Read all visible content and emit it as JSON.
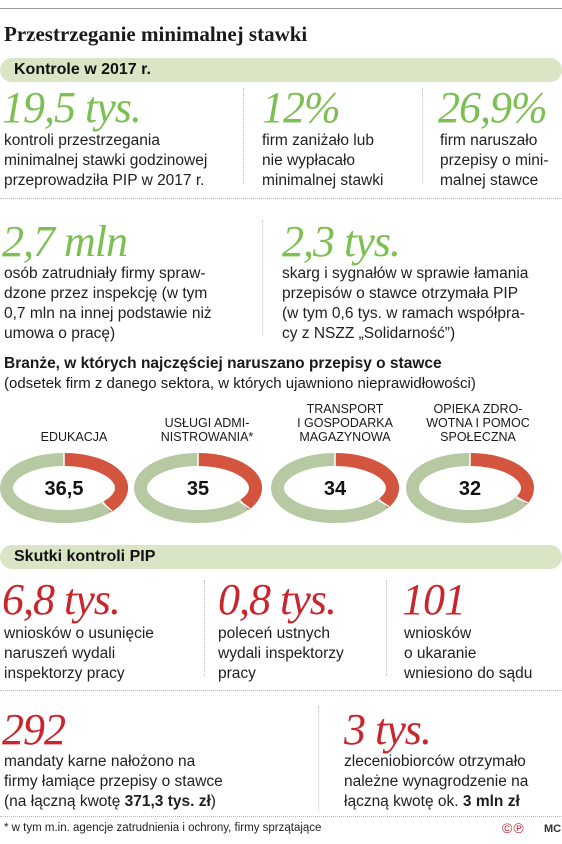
{
  "title": "Przestrzeganie minimalnej stawki",
  "band1": "Kontrole w 2017 r.",
  "stats_top": [
    {
      "value": "19,5 tys.",
      "text": "kontroli przestrzegania\nminimalnej stawki godzinowej\nprzeprowadziła PIP w 2017 r."
    },
    {
      "value": "12%",
      "text": "firm zaniżało lub\nnie wypłacało\nminimalnej stawki"
    },
    {
      "value": "26,9%",
      "text": "firm naruszało\nprzepisy o mini-\nmalnej stawce"
    }
  ],
  "stats_mid": [
    {
      "value": "2,7 mln",
      "text": "osób zatrudniały firmy spraw-\ndzone przez inspekcję (w tym\n0,7 mln na innej podstawie niż\numowa o pracę)"
    },
    {
      "value": "2,3 tys.",
      "text": "skarg i sygnałów w sprawie łamania\nprzepisów o stawce otrzymała PIP\n(w tym 0,6 tys. w ramach współpra-\ncy z NSZZ „Solidarność”)"
    }
  ],
  "chart_section": {
    "title": "Branże, w których najczęściej naruszano przepisy o stawce",
    "subtitle": "(odsetek firm z danego sektora, w których ujawniono nieprawidłowości)"
  },
  "chart_data": {
    "type": "pie",
    "title": "Branże, w których najczęściej naruszano przepisy o stawce",
    "subtitle": "(odsetek firm z danego sektora, w których ujawniono nieprawidłowości)",
    "categories": [
      "EDUKACJA",
      "USŁUGI ADMI-\nNISTROWANIA*",
      "TRANSPORT\nI GOSPODARKA\nMAGAZYNOWA",
      "OPIEKA ZDRO-\nWOTNA I POMOC\nSPOŁECZNA"
    ],
    "values": [
      36.5,
      35,
      34,
      32
    ],
    "value_labels": [
      "36,5",
      "35",
      "34",
      "32"
    ],
    "colors": {
      "highlight": "#d4553f",
      "rest": "#b7c9a2"
    }
  },
  "band2": "Skutki kontroli PIP",
  "stats_effects": [
    {
      "value": "6,8 tys.",
      "text": "wniosków o usunięcie\nnaruszeń wydali\ninspektorzy pracy"
    },
    {
      "value": "0,8 tys.",
      "text": "poleceń ustnych\nwydali inspektorzy\npracy"
    },
    {
      "value": "101",
      "text": "wniosków\no ukaranie\nwniesiono do sądu"
    }
  ],
  "stats_bottom": [
    {
      "value": "292",
      "text": "mandaty karne nałożono na\nfirmy łamiące przepisy o stawce\n(na łączną kwotę ",
      "bold": "371,3 tys. zł",
      "tail": ")"
    },
    {
      "value": "3 tys.",
      "text": "zleceniobiorców otrzymało\nnależne wynagrodzenie na\nłączną kwotę ok. ",
      "bold": "3 mln zł",
      "tail": ""
    }
  ],
  "footnote": "* w tym m.in. agencje zatrudnienia i ochrony, firmy sprzątające",
  "logo": "©℗",
  "credit": "MC"
}
